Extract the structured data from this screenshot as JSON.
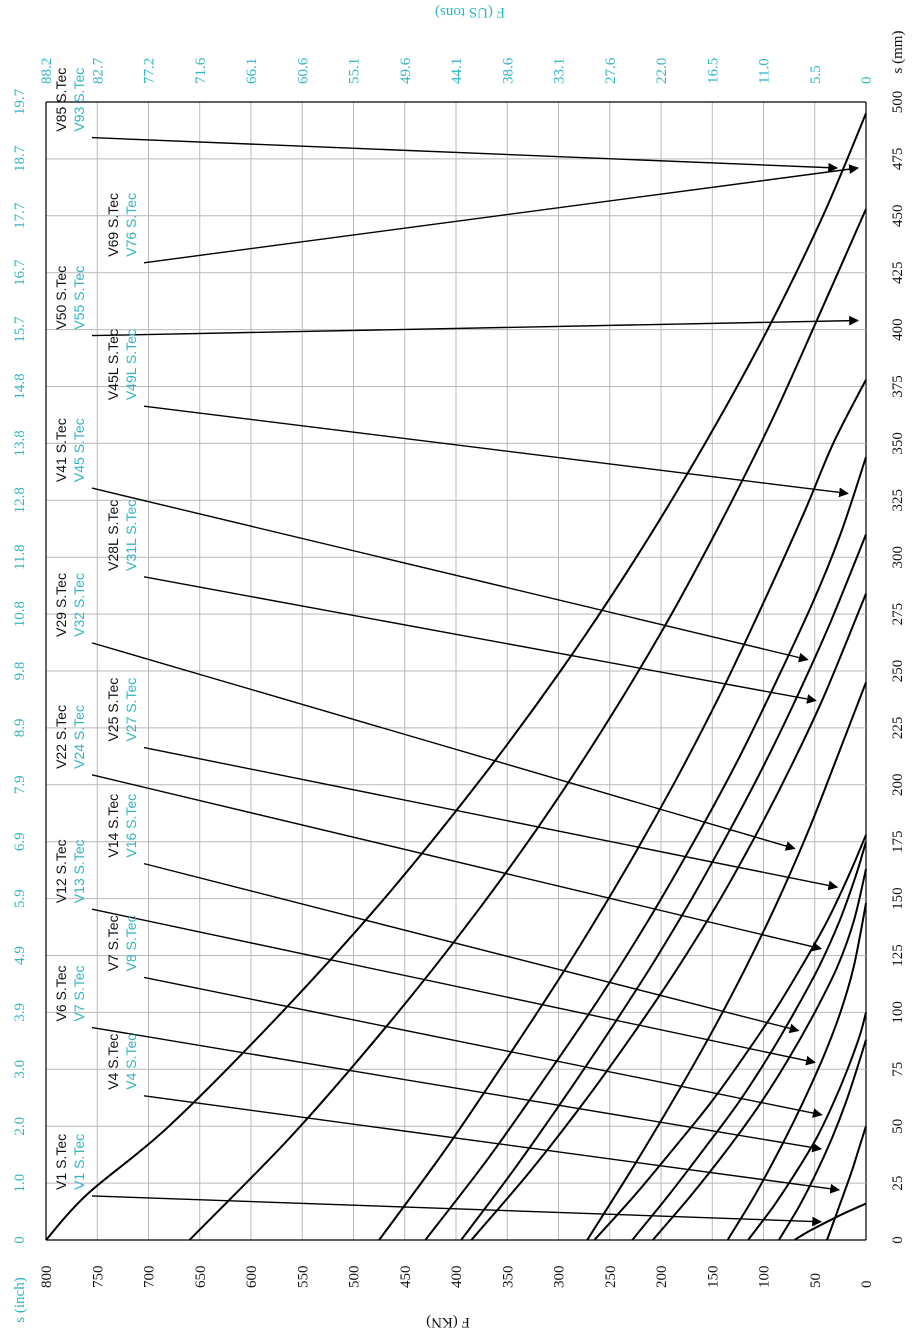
{
  "chart_data": {
    "type": "line",
    "orientation": "rotated-90",
    "x_axis_primary": {
      "label": "s (mm)",
      "ticks": [
        0,
        25,
        50,
        75,
        100,
        125,
        150,
        175,
        200,
        225,
        250,
        275,
        300,
        325,
        350,
        375,
        400,
        425,
        450,
        475,
        500
      ],
      "range": [
        0,
        500
      ]
    },
    "x_axis_secondary": {
      "label": "s (inch)",
      "ticks": [
        "0",
        "1.0",
        "2.0",
        "3.0",
        "3.9",
        "4.9",
        "5.9",
        "6.9",
        "7.9",
        "8.9",
        "9.8",
        "10.8",
        "11.8",
        "12.8",
        "13.8",
        "14.8",
        "15.7",
        "16.7",
        "17.7",
        "18.7",
        "19.7"
      ]
    },
    "y_axis_primary": {
      "label": "F (KN)",
      "ticks": [
        0,
        50,
        100,
        150,
        200,
        250,
        300,
        350,
        400,
        450,
        500,
        550,
        600,
        650,
        700,
        750,
        800
      ],
      "range": [
        0,
        800
      ]
    },
    "y_axis_secondary": {
      "label": "F (US tons)",
      "ticks": [
        "0",
        "5.5",
        "11.0",
        "16.5",
        "22.0",
        "27.6",
        "33.1",
        "38.6",
        "44.1",
        "49.6",
        "55.1",
        "60.6",
        "66.1",
        "71.6",
        "77.2",
        "82.7",
        "88.2"
      ]
    },
    "grid": true,
    "series": [
      {
        "name": "V1 S.Tec",
        "alt_name": "V1 S.Tec",
        "s_max": 16,
        "points": [
          [
            0,
            70
          ],
          [
            4,
            55
          ],
          [
            8,
            38
          ],
          [
            12,
            20
          ],
          [
            16,
            0
          ]
        ]
      },
      {
        "name": "V4 S.Tec",
        "alt_name": "V4 S.Tec",
        "s_max": 50,
        "points": [
          [
            0,
            38
          ],
          [
            10,
            30
          ],
          [
            20,
            22
          ],
          [
            30,
            14
          ],
          [
            40,
            7
          ],
          [
            50,
            0
          ]
        ]
      },
      {
        "name": "V6 S.Tec",
        "alt_name": "V7 S.Tec",
        "s_max": 88,
        "points": [
          [
            0,
            85
          ],
          [
            15,
            65
          ],
          [
            30,
            48
          ],
          [
            45,
            33
          ],
          [
            60,
            20
          ],
          [
            75,
            9
          ],
          [
            88,
            0
          ]
        ]
      },
      {
        "name": "V7 S.Tec",
        "alt_name": "V8 S.Tec",
        "s_max": 100,
        "points": [
          [
            0,
            115
          ],
          [
            15,
            90
          ],
          [
            30,
            68
          ],
          [
            45,
            48
          ],
          [
            60,
            32
          ],
          [
            75,
            18
          ],
          [
            90,
            6
          ],
          [
            100,
            0
          ]
        ]
      },
      {
        "name": "V12 S.Tec",
        "alt_name": "V13 S.Tec",
        "s_max": 148,
        "points": [
          [
            0,
            135
          ],
          [
            20,
            108
          ],
          [
            40,
            84
          ],
          [
            60,
            62
          ],
          [
            80,
            42
          ],
          [
            100,
            25
          ],
          [
            120,
            12
          ],
          [
            148,
            0
          ]
        ]
      },
      {
        "name": "V14 S.Tec",
        "alt_name": "V16 S.Tec",
        "s_max": 163,
        "points": [
          [
            0,
            208
          ],
          [
            20,
            170
          ],
          [
            40,
            135
          ],
          [
            60,
            103
          ],
          [
            80,
            75
          ],
          [
            100,
            50
          ],
          [
            120,
            28
          ],
          [
            140,
            12
          ],
          [
            163,
            0
          ]
        ]
      },
      {
        "name": "V22 S.Tec",
        "alt_name": "V24 S.Tec",
        "s_max": 175,
        "points": [
          [
            0,
            228
          ],
          [
            20,
            192
          ],
          [
            40,
            158
          ],
          [
            60,
            125
          ],
          [
            80,
            96
          ],
          [
            100,
            70
          ],
          [
            120,
            46
          ],
          [
            140,
            26
          ],
          [
            160,
            10
          ],
          [
            175,
            0
          ]
        ]
      },
      {
        "name": "V25 S.Tec",
        "alt_name": "V27 S.Tec",
        "s_max": 178,
        "points": [
          [
            0,
            265
          ],
          [
            20,
            225
          ],
          [
            40,
            188
          ],
          [
            60,
            152
          ],
          [
            80,
            120
          ],
          [
            100,
            90
          ],
          [
            120,
            63
          ],
          [
            140,
            38
          ],
          [
            160,
            17
          ],
          [
            178,
            0
          ]
        ]
      },
      {
        "name": "V29 S.Tec",
        "alt_name": "V32 S.Tec",
        "s_max": 245,
        "points": [
          [
            0,
            272
          ],
          [
            30,
            230
          ],
          [
            60,
            190
          ],
          [
            90,
            152
          ],
          [
            120,
            117
          ],
          [
            150,
            85
          ],
          [
            180,
            56
          ],
          [
            210,
            30
          ],
          [
            245,
            0
          ]
        ]
      },
      {
        "name": "V28L S.Tec",
        "alt_name": "V31L S.Tec",
        "s_max": 284,
        "points": [
          [
            0,
            385
          ],
          [
            30,
            328
          ],
          [
            60,
            276
          ],
          [
            90,
            228
          ],
          [
            120,
            183
          ],
          [
            150,
            142
          ],
          [
            180,
            105
          ],
          [
            210,
            71
          ],
          [
            240,
            40
          ],
          [
            284,
            0
          ]
        ]
      },
      {
        "name": "V41 S.Tec",
        "alt_name": "V45 S.Tec",
        "s_max": 310,
        "points": [
          [
            0,
            395
          ],
          [
            30,
            345
          ],
          [
            60,
            298
          ],
          [
            90,
            253
          ],
          [
            120,
            210
          ],
          [
            150,
            170
          ],
          [
            180,
            133
          ],
          [
            210,
            98
          ],
          [
            240,
            66
          ],
          [
            270,
            36
          ],
          [
            310,
            0
          ]
        ]
      },
      {
        "name": "V45L S.Tec",
        "alt_name": "V49L S.Tec",
        "s_max": 344,
        "points": [
          [
            0,
            430
          ],
          [
            35,
            370
          ],
          [
            70,
            315
          ],
          [
            105,
            262
          ],
          [
            140,
            213
          ],
          [
            175,
            168
          ],
          [
            210,
            126
          ],
          [
            245,
            88
          ],
          [
            280,
            52
          ],
          [
            310,
            25
          ],
          [
            344,
            0
          ]
        ]
      },
      {
        "name": "V50 S.Tec",
        "alt_name": "V55 S.Tec",
        "s_max": 378,
        "points": [
          [
            0,
            475
          ],
          [
            40,
            410
          ],
          [
            80,
            350
          ],
          [
            120,
            292
          ],
          [
            160,
            238
          ],
          [
            200,
            188
          ],
          [
            240,
            142
          ],
          [
            280,
            100
          ],
          [
            320,
            60
          ],
          [
            350,
            32
          ],
          [
            378,
            0
          ]
        ]
      },
      {
        "name": "V69 S.Tec",
        "alt_name": "V76 S.Tec",
        "s_max": 453,
        "points": [
          [
            0,
            660
          ],
          [
            45,
            562
          ],
          [
            90,
            475
          ],
          [
            135,
            395
          ],
          [
            180,
            322
          ],
          [
            225,
            256
          ],
          [
            270,
            196
          ],
          [
            315,
            142
          ],
          [
            360,
            92
          ],
          [
            405,
            47
          ],
          [
            453,
            0
          ]
        ]
      },
      {
        "name": "V85 S.Tec",
        "alt_name": "V93 S.Tec",
        "s_max": 495,
        "points": [
          [
            0,
            800
          ],
          [
            20,
            760
          ],
          [
            50,
            680
          ],
          [
            100,
            570
          ],
          [
            150,
            470
          ],
          [
            200,
            380
          ],
          [
            250,
            298
          ],
          [
            300,
            224
          ],
          [
            350,
            157
          ],
          [
            400,
            96
          ],
          [
            450,
            42
          ],
          [
            495,
            0
          ]
        ]
      }
    ]
  }
}
